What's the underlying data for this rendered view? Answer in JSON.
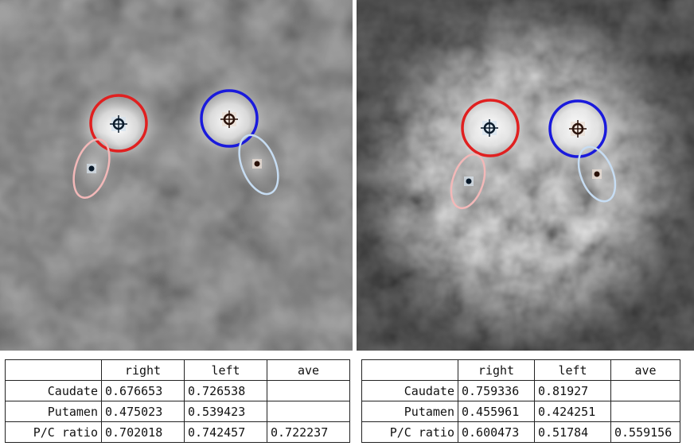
{
  "panels": [
    {
      "table": {
        "headers": [
          "",
          "right",
          "left",
          "ave"
        ],
        "rows": [
          {
            "label": "Caudate",
            "right": "0.676653",
            "left": "0.726538",
            "ave": ""
          },
          {
            "label": "Putamen",
            "right": "0.475023",
            "left": "0.539423",
            "ave": ""
          },
          {
            "label": "P/C ratio",
            "right": "0.702018",
            "left": "0.742457",
            "ave": "0.722237"
          }
        ]
      }
    },
    {
      "table": {
        "headers": [
          "",
          "right",
          "left",
          "ave"
        ],
        "rows": [
          {
            "label": "Caudate",
            "right": "0.759336",
            "left": "0.81927",
            "ave": ""
          },
          {
            "label": "Putamen",
            "right": "0.455961",
            "left": "0.424251",
            "ave": ""
          },
          {
            "label": "P/C ratio",
            "right": "0.600473",
            "left": "0.51784",
            "ave": "0.559156"
          }
        ]
      }
    }
  ],
  "roi_colors": {
    "right_caudate": "#e02020",
    "left_caudate": "#1a1adc",
    "right_putamen": "#f2b8b8",
    "left_putamen": "#c6dcf2"
  }
}
